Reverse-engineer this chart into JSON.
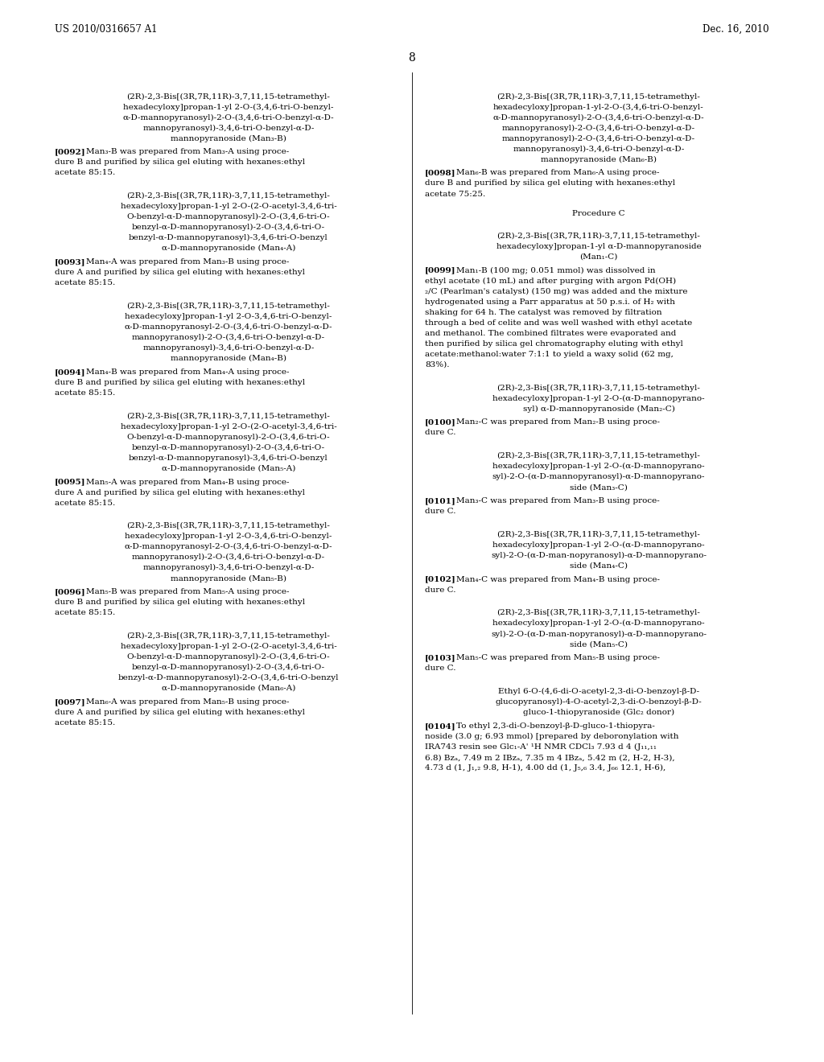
{
  "bg_color": "#ffffff",
  "header_left": "US 2010/0316657 A1",
  "header_right": "Dec. 16, 2010",
  "page_number": "8",
  "font_size_body": 7.5,
  "font_size_header": 8.5,
  "left_column": [
    {
      "type": "centered_block",
      "lines": [
        "(2R)-2,3-Bis[(3R,7R,11R)-3,7,11,15-tetramethyl-",
        "hexadecyloxy]propan-1-yl 2-O-(3,4,6-tri-O-benzyl-",
        "α-D-mannopyranosyl)-2-O-(3,4,6-tri-O-benzyl-α-D-",
        "mannopyranosyl)-3,4,6-tri-O-benzyl-α-D-",
        "mannopyranoside (Man₃-B)"
      ]
    },
    {
      "type": "paragraph",
      "tag": "[0092]",
      "lines": [
        "Man₃-B was prepared from Man₃-A using proce-",
        "dure B and purified by silica gel eluting with hexanes:ethyl",
        "acetate 85:15."
      ]
    },
    {
      "type": "centered_block",
      "lines": [
        "(2R)-2,3-Bis[(3R,7R,11R)-3,7,11,15-tetramethyl-",
        "hexadecyloxy]propan-1-yl 2-O-(2-O-acetyl-3,4,6-tri-",
        "O-benzyl-α-D-mannopyranosyl)-2-O-(3,4,6-tri-O-",
        "benzyl-α-D-mannopyranosyl)-2-O-(3,4,6-tri-O-",
        "benzyl-α-D-mannopyranosyl)-3,4,6-tri-O-benzyl",
        "α-D-mannopyranoside (Man₄-A)"
      ]
    },
    {
      "type": "paragraph",
      "tag": "[0093]",
      "lines": [
        "Man₄-A was prepared from Man₃-B using proce-",
        "dure A and purified by silica gel eluting with hexanes:ethyl",
        "acetate 85:15."
      ]
    },
    {
      "type": "centered_block",
      "lines": [
        "(2R)-2,3-Bis[(3R,7R,11R)-3,7,11,15-tetramethyl-",
        "hexadecyloxy]propan-1-yl 2-O-3,4,6-tri-O-benzyl-",
        "α-D-mannopyranosyl-2-O-(3,4,6-tri-O-benzyl-α-D-",
        "mannopyranosyl)-2-O-(3,4,6-tri-O-benzyl-α-D-",
        "mannopyranosyl)-3,4,6-tri-O-benzyl-α-D-",
        "mannopyranoside (Man₄-B)"
      ]
    },
    {
      "type": "paragraph",
      "tag": "[0094]",
      "lines": [
        "Man₄-B was prepared from Man₄-A using proce-",
        "dure B and purified by silica gel eluting with hexanes:ethyl",
        "acetate 85:15."
      ]
    },
    {
      "type": "centered_block",
      "lines": [
        "(2R)-2,3-Bis[(3R,7R,11R)-3,7,11,15-tetramethyl-",
        "hexadecyloxy]propan-1-yl 2-O-(2-O-acetyl-3,4,6-tri-",
        "O-benzyl-α-D-mannopyranosyl)-2-O-(3,4,6-tri-O-",
        "benzyl-α-D-mannopyranosyl)-2-O-(3,4,6-tri-O-",
        "benzyl-α-D-mannopyranosyl)-3,4,6-tri-O-benzyl",
        "α-D-mannopyranoside (Man₅-A)"
      ]
    },
    {
      "type": "paragraph",
      "tag": "[0095]",
      "lines": [
        "Man₅-A was prepared from Man₄-B using proce-",
        "dure A and purified by silica gel eluting with hexanes:ethyl",
        "acetate 85:15."
      ]
    },
    {
      "type": "centered_block",
      "lines": [
        "(2R)-2,3-Bis[(3R,7R,11R)-3,7,11,15-tetramethyl-",
        "hexadecyloxy]propan-1-yl 2-O-3,4,6-tri-O-benzyl-",
        "α-D-mannopyranosyl-2-O-(3,4,6-tri-O-benzyl-α-D-",
        "mannopyranosyl)-2-O-(3,4,6-tri-O-benzyl-α-D-",
        "mannopyranosyl)-3,4,6-tri-O-benzyl-α-D-",
        "mannopyranoside (Man₅-B)"
      ]
    },
    {
      "type": "paragraph",
      "tag": "[0096]",
      "lines": [
        "Man₅-B was prepared from Man₅-A using proce-",
        "dure B and purified by silica gel eluting with hexanes:ethyl",
        "acetate 85:15."
      ]
    },
    {
      "type": "centered_block",
      "lines": [
        "(2R)-2,3-Bis[(3R,7R,11R)-3,7,11,15-tetramethyl-",
        "hexadecyloxy]propan-1-yl 2-O-(2-O-acetyl-3,4,6-tri-",
        "O-benzyl-α-D-mannopyranosyl)-2-O-(3,4,6-tri-O-",
        "benzyl-α-D-mannopyranosyl)-2-O-(3,4,6-tri-O-",
        "benzyl-α-D-mannopyranosyl)-2-O-(3,4,6-tri-O-benzyl",
        "α-D-mannopyranoside (Man₆-A)"
      ]
    },
    {
      "type": "paragraph",
      "tag": "[0097]",
      "lines": [
        "Man₆-A was prepared from Man₅-B using proce-",
        "dure A and purified by silica gel eluting with hexanes:ethyl",
        "acetate 85:15."
      ]
    }
  ],
  "right_column": [
    {
      "type": "centered_block",
      "lines": [
        "(2R)-2,3-Bis[(3R,7R,11R)-3,7,11,15-tetramethyl-",
        "hexadecyloxy]propan-1-yl-2-O-(3,4,6-tri-O-benzyl-",
        "α-D-mannopyranosyl)-2-O-(3,4,6-tri-O-benzyl-α-D-",
        "mannopyranosyl)-2-O-(3,4,6-tri-O-benzyl-α-D-",
        "mannopyranosyl)-2-O-(3,4,6-tri-O-benzyl-α-D-",
        "mannopyranosyl)-3,4,6-tri-O-benzyl-α-D-",
        "mannopyranoside (Man₆-B)"
      ]
    },
    {
      "type": "paragraph",
      "tag": "[0098]",
      "lines": [
        "Man₆-B was prepared from Man₆-A using proce-",
        "dure B and purified by silica gel eluting with hexanes:ethyl",
        "acetate 75:25."
      ]
    },
    {
      "type": "section_title",
      "lines": [
        "Procedure C"
      ]
    },
    {
      "type": "centered_block",
      "lines": [
        "(2R)-2,3-Bis[(3R,7R,11R)-3,7,11,15-tetramethyl-",
        "hexadecyloxy]propan-1-yl α-D-mannopyranoside",
        "(Man₁-C)"
      ]
    },
    {
      "type": "paragraph",
      "tag": "[0099]",
      "lines": [
        "Man₁-B (100 mg; 0.051 mmol) was dissolved in",
        "ethyl acetate (10 mL) and after purging with argon Pd(OH)",
        "₂/C (Pearlman's catalyst) (150 mg) was added and the mixture",
        "hydrogenated using a Parr apparatus at 50 p.s.i. of H₂ with",
        "shaking for 64 h. The catalyst was removed by filtration",
        "through a bed of celite and was well washed with ethyl acetate",
        "and methanol. The combined filtrates were evaporated and",
        "then purified by silica gel chromatography eluting with ethyl",
        "acetate:methanol:water 7:1:1 to yield a waxy solid (62 mg,",
        "83%)."
      ]
    },
    {
      "type": "centered_block",
      "lines": [
        "(2R)-2,3-Bis[(3R,7R,11R)-3,7,11,15-tetramethyl-",
        "hexadecyloxy]propan-1-yl 2-O-(α-D-mannopyrano-",
        "syl) α-D-mannopyranoside (Man₂-C)"
      ]
    },
    {
      "type": "paragraph",
      "tag": "[0100]",
      "lines": [
        "Man₂-C was prepared from Man₂-B using proce-",
        "dure C."
      ]
    },
    {
      "type": "centered_block",
      "lines": [
        "(2R)-2,3-Bis[(3R,7R,11R)-3,7,11,15-tetramethyl-",
        "hexadecyloxy]propan-1-yl 2-O-(α-D-mannopyrano-",
        "syl)-2-O-(α-D-mannopyranosyl)-α-D-mannopyrano-",
        "side (Man₃-C)"
      ]
    },
    {
      "type": "paragraph",
      "tag": "[0101]",
      "lines": [
        "Man₃-C was prepared from Man₃-B using proce-",
        "dure C."
      ]
    },
    {
      "type": "centered_block",
      "lines": [
        "(2R)-2,3-Bis[(3R,7R,11R)-3,7,11,15-tetramethyl-",
        "hexadecyloxy]propan-1-yl 2-O-(α-D-mannopyrano-",
        "syl)-2-O-(α-D-man-nopyranosyl)-α-D-mannopyrano-",
        "side (Man₄-C)"
      ]
    },
    {
      "type": "paragraph",
      "tag": "[0102]",
      "lines": [
        "Man₄-C was prepared from Man₄-B using proce-",
        "dure C."
      ]
    },
    {
      "type": "centered_block",
      "lines": [
        "(2R)-2,3-Bis[(3R,7R,11R)-3,7,11,15-tetramethyl-",
        "hexadecyloxy]propan-1-yl 2-O-(α-D-mannopyrano-",
        "syl)-2-O-(α-D-man-nopyranosyl)-α-D-mannopyrano-",
        "side (Man₅-C)"
      ]
    },
    {
      "type": "paragraph",
      "tag": "[0103]",
      "lines": [
        "Man₅-C was prepared from Man₅-B using proce-",
        "dure C."
      ]
    },
    {
      "type": "centered_block",
      "lines": [
        "Ethyl 6-O-(4,6-di-O-acetyl-2,3-di-O-benzoyl-β-D-",
        "glucopyranosyl)-4-O-acetyl-2,3-di-O-benzoyl-β-D-",
        "gluco-1-thiopyranoside (Glc₂ donor)"
      ]
    },
    {
      "type": "paragraph",
      "tag": "[0104]",
      "lines": [
        "To ethyl 2,3-di-O-benzoyl-β-D-gluco-1-thiopyra-",
        "noside (3.0 g; 6.93 mmol) [prepared by deboronylation with",
        "IRA743 resin see Glc₁-A' ¹H NMR CDCl₃ 7.93 d 4 (J₁₁,₁₁",
        "6.8) Bzₐ, 7.49 m 2 IBzₐ, 7.35 m 4 IBzₐ, 5.42 m (2, H-2, H-3),",
        "4.73 d (1, J₁,₂ 9.8, H-1), 4.00 dd (1, J₅,₆ 3.4, J₆₆ 12.1, H-6),"
      ]
    }
  ]
}
